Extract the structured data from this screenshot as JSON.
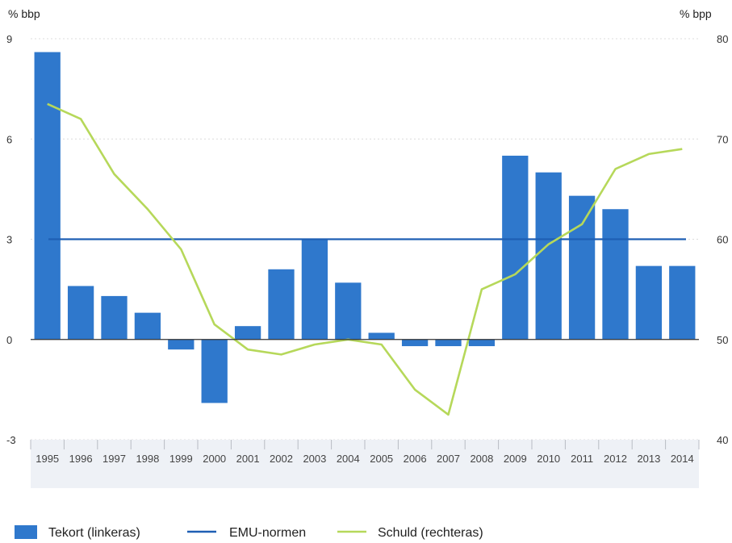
{
  "chart_data": {
    "type": "bar",
    "left_axis_unit": "% bbp",
    "right_axis_unit": "% bpp",
    "left_ylim": [
      -3,
      9
    ],
    "left_ticks": [
      "-3",
      "0",
      "3",
      "6",
      "9"
    ],
    "right_ylim": [
      40,
      80
    ],
    "right_ticks": [
      "40",
      "50",
      "60",
      "70",
      "80"
    ],
    "categories": [
      "1995",
      "1996",
      "1997",
      "1998",
      "1999",
      "2000",
      "2001",
      "2002",
      "2003",
      "2004",
      "2005",
      "2006",
      "2007",
      "2008",
      "2009",
      "2010",
      "2011",
      "2012",
      "2013",
      "2014"
    ],
    "series": [
      {
        "name": "Tekort (linkeras)",
        "type": "bar",
        "axis": "left",
        "color": "#2f78cc",
        "values": [
          8.6,
          1.6,
          1.3,
          0.8,
          -0.3,
          -1.9,
          0.4,
          2.1,
          3.0,
          1.7,
          0.2,
          -0.2,
          -0.2,
          -0.2,
          5.5,
          5.0,
          4.3,
          3.9,
          2.2,
          2.2
        ]
      },
      {
        "name": "EMU-normen",
        "type": "line",
        "axis": "left",
        "color": "#1f5fb4",
        "values": [
          3,
          3,
          3,
          3,
          3,
          3,
          3,
          3,
          3,
          3,
          3,
          3,
          3,
          3,
          3,
          3,
          3,
          3,
          3,
          3
        ]
      },
      {
        "name": "Schuld (rechteras)",
        "type": "line",
        "axis": "right",
        "color": "#b6d85a",
        "values": [
          73.5,
          72.0,
          66.5,
          63.0,
          59.0,
          51.5,
          49.0,
          48.5,
          49.5,
          50.0,
          49.5,
          45.0,
          42.5,
          55.0,
          56.5,
          59.5,
          61.5,
          67.0,
          68.5,
          69.0
        ]
      }
    ],
    "legend": {
      "position": "bottom",
      "items": [
        "Tekort (linkeras)",
        "EMU-normen",
        "Schuld (rechteras)"
      ]
    },
    "grid": true
  }
}
